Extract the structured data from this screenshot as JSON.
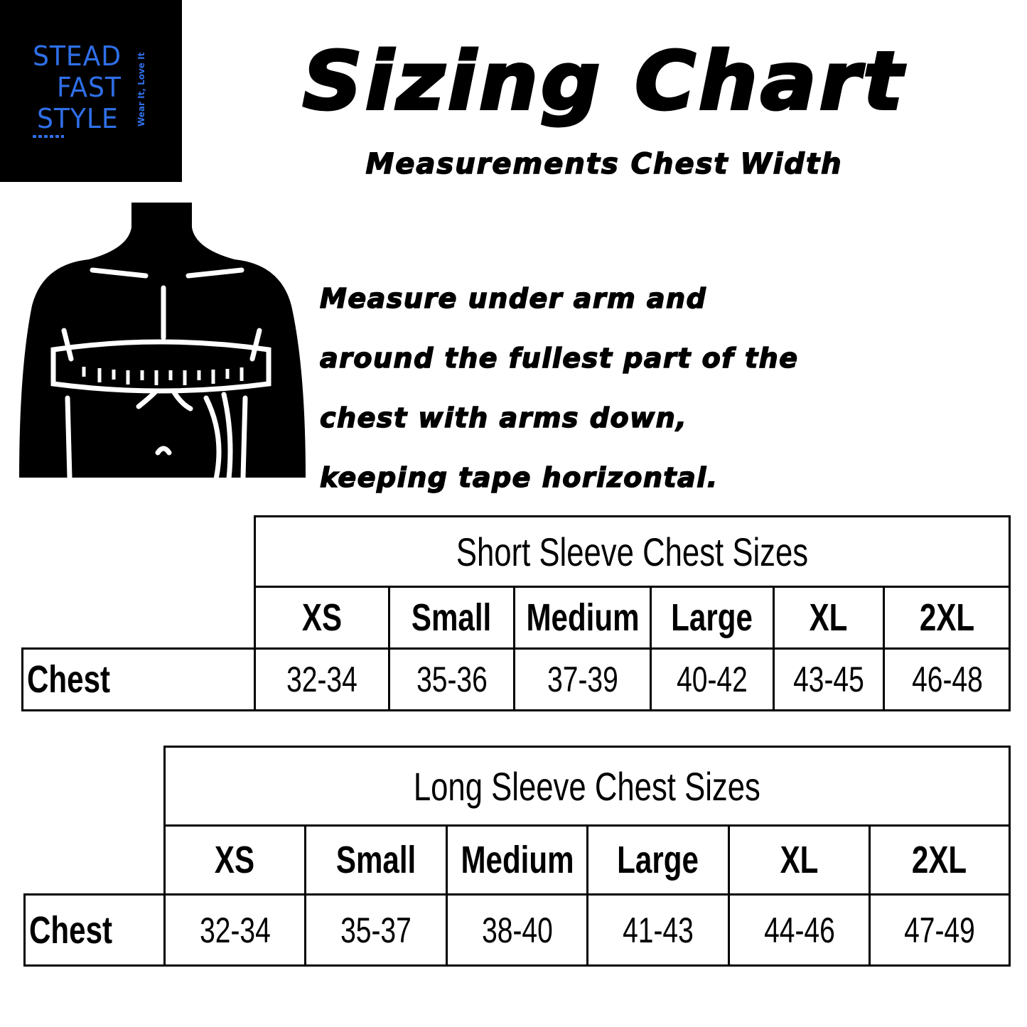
{
  "brand": {
    "line1": "STEAD",
    "line2": "FAST",
    "line3": "STYLE",
    "tagline": "Wear It, Love It",
    "color": "#2f6fe8"
  },
  "header": {
    "title": "Sizing Chart",
    "subtitle": "Measurements Chest Width"
  },
  "illustration": {
    "icon": "torso-measuring-tape-icon"
  },
  "instructions": [
    "Measure under arm and",
    "around the fullest part of the",
    "chest with arms down,",
    "keeping tape horizontal."
  ],
  "short_sleeve": {
    "title": "Short Sleeve Chest Sizes",
    "sizes": [
      "XS",
      "Small",
      "Medium",
      "Large",
      "XL",
      "2XL"
    ],
    "row_label": "Chest",
    "values": [
      "32-34",
      "35-36",
      "37-39",
      "40-42",
      "43-45",
      "46-48"
    ]
  },
  "long_sleeve": {
    "title": "Long Sleeve Chest Sizes",
    "sizes": [
      "XS",
      "Small",
      "Medium",
      "Large",
      "XL",
      "2XL"
    ],
    "row_label": "Chest",
    "values": [
      "32-34",
      "35-37",
      "38-40",
      "41-43",
      "44-46",
      "47-49"
    ]
  }
}
